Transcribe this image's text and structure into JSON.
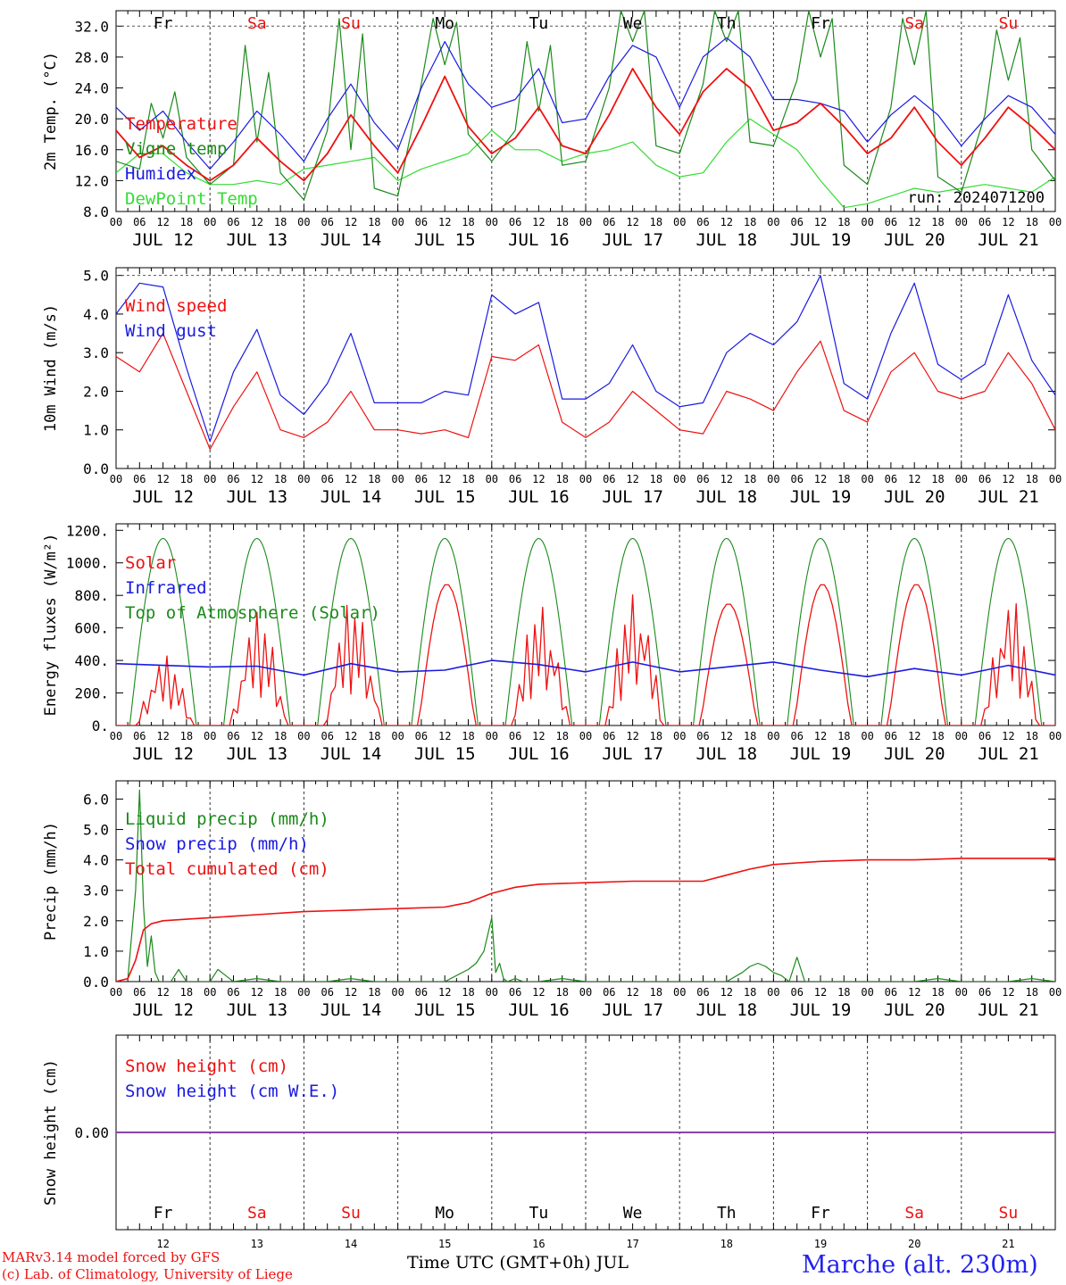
{
  "days": [
    "12",
    "13",
    "14",
    "15",
    "16",
    "17",
    "18",
    "19",
    "20",
    "21"
  ],
  "hour_ticks": [
    "00",
    "06",
    "12",
    "18"
  ],
  "date_labels": [
    "JUL 12",
    "JUL 13",
    "JUL 14",
    "JUL 15",
    "JUL 16",
    "JUL 17",
    "JUL 18",
    "JUL 19",
    "JUL 20",
    "JUL 21"
  ],
  "weekdays": [
    "Fr",
    "Sa",
    "Su",
    "Mo",
    "Tu",
    "We",
    "Th",
    "Fr",
    "Sa",
    "Su"
  ],
  "weekend_indices": [
    1,
    2,
    8,
    9
  ],
  "month": "JUL",
  "footer": {
    "model": "MARv3.14 model forced by GFS",
    "credit": "(c) Lab. of Climatology, University of Liege",
    "xlabel": "Time UTC (GMT+0h) JUL",
    "station": "Marche (alt. 230m)"
  },
  "colors": {
    "red": "#ee1111",
    "green": "#1a8a1a",
    "blue": "#1a1ae0",
    "lightgreen": "#33dd33",
    "purple": "#8844aa"
  },
  "chart_data": [
    {
      "type": "line",
      "id": "temp",
      "ylabel": "2m Temp. (°C)",
      "ylim": [
        8,
        34
      ],
      "yticks": [
        "8.0",
        "12.0",
        "16.0",
        "20.0",
        "24.0",
        "28.0",
        "32.0"
      ],
      "run": "run: 2024071200",
      "x_hours": 240,
      "series": [
        {
          "name": "Temperature",
          "color": "#ee1111",
          "x": [
            0,
            6,
            12,
            18,
            24,
            30,
            36,
            42,
            48,
            54,
            60,
            66,
            72,
            78,
            84,
            90,
            96,
            102,
            108,
            114,
            120,
            126,
            132,
            138,
            144,
            150,
            156,
            162,
            168,
            174,
            180,
            186,
            192,
            198,
            204,
            210,
            216,
            222,
            228,
            234,
            240
          ],
          "values": [
            18.5,
            15.0,
            16.5,
            14.0,
            12.0,
            14.0,
            17.5,
            14.5,
            12.0,
            15.5,
            20.5,
            16.5,
            13.0,
            19.0,
            25.5,
            19.0,
            15.5,
            17.5,
            21.5,
            16.5,
            15.5,
            20.5,
            26.5,
            21.5,
            18.0,
            23.5,
            26.5,
            24.0,
            18.5,
            19.5,
            22.0,
            19.0,
            15.5,
            17.5,
            21.5,
            17.0,
            14.0,
            17.5,
            21.5,
            19.0,
            16.0
          ]
        },
        {
          "name": "Vigne temp",
          "color": "#1a8a1a",
          "x": [
            0,
            6,
            9,
            12,
            15,
            18,
            24,
            30,
            33,
            36,
            39,
            42,
            48,
            54,
            57,
            60,
            63,
            66,
            72,
            78,
            81,
            84,
            87,
            90,
            96,
            102,
            105,
            108,
            111,
            114,
            120,
            126,
            129,
            132,
            135,
            138,
            144,
            150,
            153,
            156,
            159,
            162,
            168,
            174,
            177,
            180,
            183,
            186,
            192,
            198,
            201,
            204,
            207,
            210,
            216,
            222,
            225,
            228,
            231,
            234,
            240
          ],
          "values": [
            14.5,
            13.5,
            22.0,
            17.5,
            23.5,
            15.0,
            11.5,
            14.0,
            29.5,
            17.0,
            26.0,
            13.0,
            9.5,
            18.5,
            33.0,
            16.0,
            31.0,
            11.0,
            10.0,
            24.5,
            33.0,
            27.0,
            32.5,
            18.0,
            14.5,
            18.5,
            30.0,
            21.0,
            29.5,
            14.0,
            14.5,
            24.0,
            34.0,
            30.0,
            34.0,
            16.5,
            15.5,
            24.5,
            34.0,
            30.0,
            34.0,
            17.0,
            16.5,
            25.0,
            34.0,
            28.0,
            33.0,
            14.0,
            11.5,
            21.5,
            33.0,
            27.0,
            34.0,
            12.5,
            10.5,
            20.5,
            31.5,
            25.0,
            30.5,
            16.0,
            12.0
          ]
        },
        {
          "name": "Humidex",
          "color": "#1a1ae0",
          "x": [
            0,
            6,
            12,
            18,
            24,
            30,
            36,
            42,
            48,
            54,
            60,
            66,
            72,
            78,
            84,
            90,
            96,
            102,
            108,
            114,
            120,
            126,
            132,
            138,
            144,
            150,
            156,
            162,
            168,
            174,
            180,
            186,
            192,
            198,
            204,
            210,
            216,
            222,
            228,
            234,
            240
          ],
          "values": [
            21.5,
            18.5,
            21.0,
            17.0,
            13.5,
            17.0,
            21.0,
            18.0,
            14.5,
            20.0,
            24.5,
            19.5,
            16.0,
            24.0,
            30.0,
            24.5,
            21.5,
            22.5,
            26.5,
            19.5,
            20.0,
            25.5,
            29.5,
            28.0,
            21.5,
            28.0,
            30.5,
            28.0,
            22.5,
            22.5,
            22.0,
            21.0,
            17.0,
            20.5,
            23.0,
            20.5,
            16.5,
            20.0,
            23.0,
            21.5,
            18.0
          ]
        },
        {
          "name": "DewPoint Temp",
          "color": "#33dd33",
          "x": [
            0,
            6,
            12,
            18,
            24,
            30,
            36,
            42,
            48,
            54,
            60,
            66,
            72,
            78,
            84,
            90,
            96,
            102,
            108,
            114,
            120,
            126,
            132,
            138,
            144,
            150,
            156,
            162,
            168,
            174,
            180,
            186,
            192,
            198,
            204,
            210,
            216,
            222,
            228,
            234,
            240
          ],
          "values": [
            13.0,
            15.5,
            15.5,
            13.0,
            11.5,
            11.5,
            12.0,
            11.5,
            13.5,
            14.0,
            14.5,
            15.0,
            12.0,
            13.5,
            14.5,
            15.5,
            18.5,
            16.0,
            16.0,
            14.5,
            15.5,
            16.0,
            17.0,
            14.0,
            12.5,
            13.0,
            17.0,
            20.0,
            18.0,
            16.0,
            12.0,
            8.5,
            9.0,
            10.0,
            11.0,
            10.5,
            11.0,
            11.5,
            11.0,
            10.5,
            12.5
          ]
        }
      ]
    },
    {
      "type": "line",
      "id": "wind",
      "ylabel": "10m Wind (m/s)",
      "ylim": [
        0,
        5.2
      ],
      "yticks": [
        "0.0",
        "1.0",
        "2.0",
        "3.0",
        "4.0",
        "5.0"
      ],
      "x_hours": 240,
      "series": [
        {
          "name": "Wind speed",
          "color": "#ee1111",
          "x": [
            0,
            6,
            12,
            18,
            24,
            30,
            36,
            42,
            48,
            54,
            60,
            66,
            72,
            78,
            84,
            90,
            96,
            102,
            108,
            114,
            120,
            126,
            132,
            138,
            144,
            150,
            156,
            162,
            168,
            174,
            180,
            186,
            192,
            198,
            204,
            210,
            216,
            222,
            228,
            234,
            240
          ],
          "values": [
            2.9,
            2.5,
            3.5,
            2.0,
            0.5,
            1.6,
            2.5,
            1.0,
            0.8,
            1.2,
            2.0,
            1.0,
            1.0,
            0.9,
            1.0,
            0.8,
            2.9,
            2.8,
            3.2,
            1.2,
            0.8,
            1.2,
            2.0,
            1.5,
            1.0,
            0.9,
            2.0,
            1.8,
            1.5,
            2.5,
            3.3,
            1.5,
            1.2,
            2.5,
            3.0,
            2.0,
            1.8,
            2.0,
            3.0,
            2.2,
            1.0
          ]
        },
        {
          "name": "Wind gust",
          "color": "#1a1ae0",
          "x": [
            0,
            6,
            12,
            18,
            24,
            30,
            36,
            42,
            48,
            54,
            60,
            66,
            72,
            78,
            84,
            90,
            96,
            102,
            108,
            114,
            120,
            126,
            132,
            138,
            144,
            150,
            156,
            162,
            168,
            174,
            180,
            186,
            192,
            198,
            204,
            210,
            216,
            222,
            228,
            234,
            240
          ],
          "values": [
            4.0,
            4.8,
            4.7,
            2.6,
            0.7,
            2.5,
            3.6,
            1.9,
            1.4,
            2.2,
            3.5,
            1.7,
            1.7,
            1.7,
            2.0,
            1.9,
            4.5,
            4.0,
            4.3,
            1.8,
            1.8,
            2.2,
            3.2,
            2.0,
            1.6,
            1.7,
            3.0,
            3.5,
            3.2,
            3.8,
            5.0,
            2.2,
            1.8,
            3.5,
            4.8,
            2.7,
            2.3,
            2.7,
            4.5,
            2.8,
            1.9
          ]
        }
      ]
    },
    {
      "type": "line",
      "id": "energy",
      "ylabel": "Energy fluxes (W/m²)",
      "ylim": [
        0,
        1240
      ],
      "yticks": [
        "0.",
        "200.",
        "400.",
        "600.",
        "800.",
        "1000.",
        "1200."
      ],
      "x_hours": 240,
      "series": [
        {
          "name": "Solar",
          "color": "#ee1111",
          "daily_peak": [
            430,
            700,
            780,
            870,
            770,
            850,
            750,
            870,
            870,
            790
          ],
          "ragged": [
            1,
            1,
            1,
            0,
            1,
            1,
            0,
            0,
            0,
            1
          ]
        },
        {
          "name": "Infrared",
          "color": "#1a1ae0",
          "x": [
            0,
            12,
            24,
            36,
            48,
            60,
            72,
            84,
            96,
            108,
            120,
            132,
            144,
            156,
            168,
            180,
            192,
            204,
            216,
            228,
            240
          ],
          "values": [
            380,
            370,
            360,
            365,
            310,
            380,
            330,
            340,
            400,
            375,
            330,
            390,
            330,
            360,
            390,
            340,
            300,
            350,
            310,
            370,
            310
          ]
        },
        {
          "name": "Top of Atmosphere (Solar)",
          "color": "#1a8a1a",
          "daily_peak": [
            1150,
            1150,
            1150,
            1150,
            1150,
            1150,
            1150,
            1150,
            1150,
            1150
          ]
        }
      ]
    },
    {
      "type": "line",
      "id": "precip",
      "ylabel": "Precip (mm/h)",
      "ylim": [
        0,
        6.6
      ],
      "yticks": [
        "0.0",
        "1.0",
        "2.0",
        "3.0",
        "4.0",
        "5.0",
        "6.0"
      ],
      "x_hours": 240,
      "series": [
        {
          "name": "Liquid precip (mm/h)",
          "color": "#1a8a1a",
          "x": [
            0,
            3,
            5,
            6,
            7,
            8,
            9,
            10,
            11,
            12,
            14,
            16,
            18,
            20,
            22,
            24,
            26,
            28,
            30,
            36,
            42,
            48,
            54,
            60,
            66,
            72,
            78,
            84,
            90,
            92,
            94,
            96,
            97,
            98,
            99,
            100,
            102,
            104,
            108,
            114,
            120,
            132,
            144,
            150,
            156,
            160,
            162,
            164,
            166,
            168,
            170,
            172,
            174,
            176,
            180,
            186,
            192,
            198,
            204,
            210,
            216,
            222,
            228,
            234,
            240
          ],
          "values": [
            0,
            0.1,
            3.0,
            6.3,
            2.5,
            0.5,
            1.5,
            0.3,
            0,
            0,
            0,
            0.4,
            0,
            0,
            0,
            0,
            0.4,
            0.2,
            0,
            0.1,
            0,
            0,
            0,
            0.1,
            0,
            0,
            0,
            0,
            0.4,
            0.6,
            1.0,
            2.1,
            0.3,
            0.6,
            0.1,
            0,
            0.1,
            0,
            0,
            0.1,
            0,
            0,
            0,
            0,
            0,
            0.3,
            0.5,
            0.6,
            0.5,
            0.3,
            0.2,
            0,
            0.8,
            0,
            0,
            0,
            0,
            0,
            0,
            0.1,
            0,
            0,
            0,
            0.1,
            0
          ]
        },
        {
          "name": "Snow precip (mm/h)",
          "color": "#1a1ae0"
        },
        {
          "name": "Total cumulated (cm)",
          "color": "#ee1111",
          "x": [
            0,
            3,
            5,
            7,
            9,
            12,
            18,
            24,
            30,
            36,
            48,
            60,
            72,
            84,
            90,
            96,
            102,
            108,
            120,
            132,
            144,
            150,
            156,
            162,
            168,
            174,
            180,
            192,
            204,
            216,
            228,
            240
          ],
          "values": [
            0,
            0.1,
            0.7,
            1.7,
            1.9,
            2.0,
            2.05,
            2.1,
            2.15,
            2.2,
            2.3,
            2.35,
            2.4,
            2.45,
            2.6,
            2.9,
            3.1,
            3.2,
            3.25,
            3.3,
            3.3,
            3.3,
            3.5,
            3.7,
            3.85,
            3.9,
            3.95,
            4.0,
            4.0,
            4.05,
            4.05,
            4.05
          ]
        }
      ]
    },
    {
      "type": "line",
      "id": "snow",
      "ylabel": "Snow height (cm)",
      "yticks": [
        "0.00"
      ],
      "x_hours": 240,
      "series": [
        {
          "name": "Snow height (cm)",
          "color": "#ee1111",
          "x": [
            0,
            240
          ],
          "values": [
            0,
            0
          ]
        },
        {
          "name": "Snow height (cm W.E.)",
          "color": "#1a1ae0",
          "x": [
            0,
            240
          ],
          "values": [
            0,
            0
          ]
        }
      ]
    }
  ]
}
